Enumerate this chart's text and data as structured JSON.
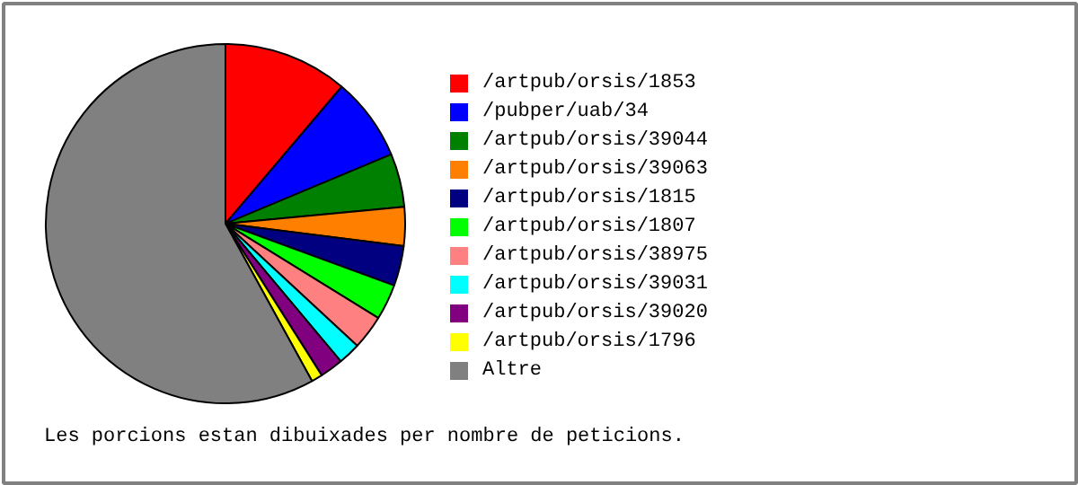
{
  "chart_data": {
    "type": "pie",
    "categories": [
      "/artpub/orsis/1853",
      "/pubper/uab/34",
      "/artpub/orsis/39044",
      "/artpub/orsis/39063",
      "/artpub/orsis/1815",
      "/artpub/orsis/1807",
      "/artpub/orsis/38975",
      "/artpub/orsis/39031",
      "/artpub/orsis/39020",
      "/artpub/orsis/1796",
      "Altre"
    ],
    "values": [
      11.2,
      7.5,
      4.8,
      3.5,
      3.6,
      3.2,
      3.1,
      2.0,
      2.1,
      1.0,
      58.0
    ],
    "colors": [
      "#ff0000",
      "#0000ff",
      "#008000",
      "#ff8000",
      "#000080",
      "#00ff00",
      "#ff8080",
      "#00ffff",
      "#800080",
      "#ffff00",
      "#808080"
    ],
    "legend": "right",
    "annotations": [
      "Les porcions estan dibuixades per nombre de peticions."
    ]
  }
}
